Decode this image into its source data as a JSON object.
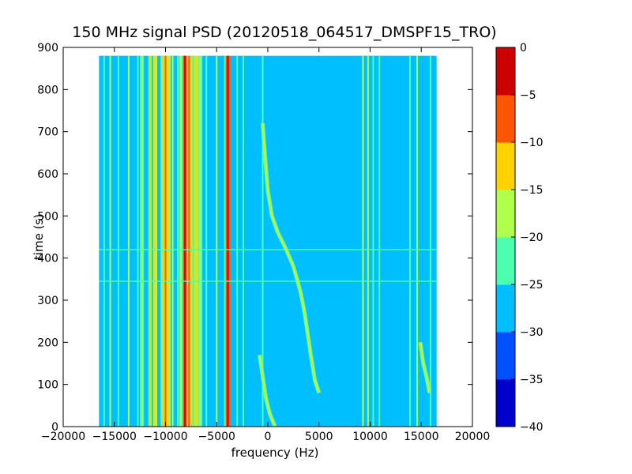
{
  "chart_data": {
    "type": "heatmap",
    "title": "150 MHz signal PSD (20120518_064517_DMSPF15_TRO)",
    "xlabel": "frequency (Hz)",
    "ylabel": "time (s)",
    "xlim": [
      -20000,
      20000
    ],
    "ylim": [
      0,
      900
    ],
    "x_ticks": [
      -20000,
      -15000,
      -10000,
      -5000,
      0,
      5000,
      10000,
      15000,
      20000
    ],
    "y_ticks": [
      0,
      100,
      200,
      300,
      400,
      500,
      600,
      700,
      800,
      900
    ],
    "data_extent": {
      "x": [
        -16500,
        16500
      ],
      "y": [
        0,
        880
      ]
    },
    "background_level": -27.5,
    "colorbar": {
      "levels": [
        0,
        -5,
        -10,
        -15,
        -20,
        -25,
        -30,
        -35,
        -40
      ],
      "colors": [
        "#0000cd",
        "#0050ff",
        "#00bfff",
        "#4cffb0",
        "#b0ff4c",
        "#ffd200",
        "#ff5500",
        "#cc0000"
      ]
    },
    "tone_lines": [
      {
        "freq": -16000,
        "level": -22
      },
      {
        "freq": -15400,
        "level": -20
      },
      {
        "freq": -14600,
        "level": -22
      },
      {
        "freq": -13600,
        "level": -20
      },
      {
        "freq": -12700,
        "level": -22
      },
      {
        "freq": -12300,
        "level": -18
      },
      {
        "freq": -11500,
        "level": -15
      },
      {
        "freq": -11000,
        "level": -12
      },
      {
        "freq": -10300,
        "level": -14
      },
      {
        "freq": -10000,
        "level": -8
      },
      {
        "freq": -9700,
        "level": -12
      },
      {
        "freq": -9300,
        "level": -20
      },
      {
        "freq": -8800,
        "level": -22
      },
      {
        "freq": -8500,
        "level": -18
      },
      {
        "freq": -8100,
        "level": -3
      },
      {
        "freq": -7700,
        "level": -8
      },
      {
        "freq": -7400,
        "level": -14
      },
      {
        "freq": -7000,
        "level": -12
      },
      {
        "freq": -6600,
        "level": -18
      },
      {
        "freq": -6000,
        "level": -22
      },
      {
        "freq": -5000,
        "level": -20
      },
      {
        "freq": -4200,
        "level": -22
      },
      {
        "freq": -3900,
        "level": -3
      },
      {
        "freq": -3000,
        "level": -22
      },
      {
        "freq": -2400,
        "level": -22
      },
      {
        "freq": -500,
        "level": -22
      },
      {
        "freq": 9300,
        "level": -20
      },
      {
        "freq": 9800,
        "level": -20
      },
      {
        "freq": 10300,
        "level": -22
      },
      {
        "freq": 10900,
        "level": -22
      },
      {
        "freq": 13900,
        "level": -22
      },
      {
        "freq": 14600,
        "level": -20
      },
      {
        "freq": 15900,
        "level": -22
      }
    ],
    "chirps": [
      {
        "name": "",
        "level": -20,
        "points": [
          [
            -500,
            720
          ],
          [
            -300,
            650
          ],
          [
            0,
            560
          ],
          [
            400,
            500
          ],
          [
            1000,
            460
          ],
          [
            1800,
            420
          ],
          [
            2500,
            380
          ],
          [
            3200,
            320
          ],
          [
            3600,
            270
          ],
          [
            3900,
            220
          ],
          [
            4200,
            170
          ],
          [
            4600,
            110
          ],
          [
            5000,
            80
          ]
        ]
      },
      {
        "name": "",
        "level": -20,
        "points": [
          [
            -800,
            170
          ],
          [
            -500,
            120
          ],
          [
            -200,
            70
          ],
          [
            200,
            30
          ],
          [
            700,
            0
          ]
        ]
      },
      {
        "name": "",
        "level": -20,
        "points": [
          [
            14900,
            200
          ],
          [
            15200,
            150
          ],
          [
            15500,
            120
          ],
          [
            15800,
            80
          ]
        ]
      }
    ],
    "broadband_events": [
      {
        "time": 345,
        "level": -22
      },
      {
        "time": 420,
        "level": -22
      }
    ]
  }
}
